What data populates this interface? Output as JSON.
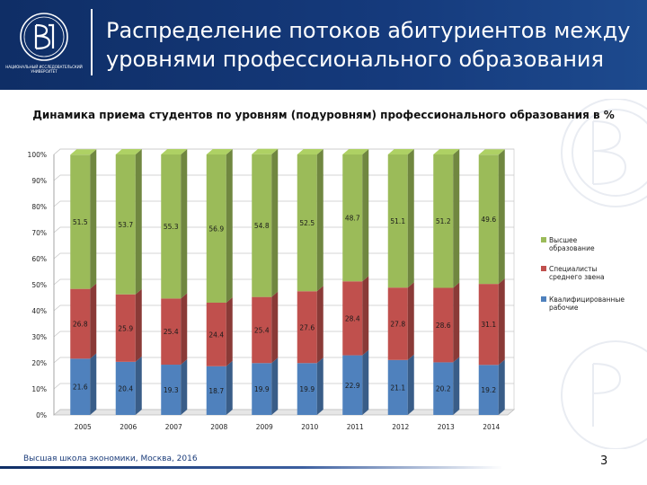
{
  "header": {
    "title": "Распределение потоков абитуриентов между уровнями профессионального образования",
    "logo_caption": "НАЦИОНАЛЬНЫЙ ИССЛЕДОВАТЕЛЬСКИЙ УНИВЕРСИТЕТ"
  },
  "footer": {
    "text": "Высшая школа экономики, Москва, 2016",
    "page_number": "3"
  },
  "colors": {
    "header": "#153a7c",
    "worker": "#4f81bd",
    "specialist": "#c0504d",
    "higher": "#9bbb59"
  },
  "chart_data": {
    "type": "bar",
    "stacked": "percent",
    "title": "Динамика приема студентов по уровням (подуровням) профессионального образования в %",
    "categories": [
      "2005",
      "2006",
      "2007",
      "2008",
      "2009",
      "2010",
      "2011",
      "2012",
      "2013",
      "2014"
    ],
    "y_ticks": [
      "0%",
      "10%",
      "20%",
      "30%",
      "40%",
      "50%",
      "60%",
      "70%",
      "80%",
      "90%",
      "100%"
    ],
    "ylim": [
      0,
      100
    ],
    "legend_position": "right",
    "series": [
      {
        "name": "Квалифицированные рабочие",
        "color": "#4f81bd",
        "values": [
          21.6,
          20.4,
          19.3,
          18.7,
          19.9,
          19.9,
          22.9,
          21.1,
          20.2,
          19.2
        ],
        "labels": [
          "21.6",
          "20.4",
          "19.3",
          "18.7",
          "19.9",
          "19.9",
          "22.9",
          "21.1",
          "20.2",
          "19.2"
        ]
      },
      {
        "name": "Специалисты среднего звена",
        "color": "#c0504d",
        "values": [
          26.8,
          25.9,
          25.4,
          24.4,
          25.4,
          27.6,
          28.4,
          27.8,
          28.6,
          31.1
        ],
        "labels": [
          "26.8",
          "25.9",
          "25.4",
          "24.4",
          "25.4",
          "27.6",
          "28.4",
          "27.8",
          "28.6",
          "31.1"
        ]
      },
      {
        "name": "Высшее образование",
        "color": "#9bbb59",
        "values": [
          51.5,
          53.7,
          55.3,
          56.9,
          54.8,
          52.5,
          48.7,
          51.1,
          51.2,
          49.6
        ],
        "labels": [
          "51.5",
          "53.7",
          "55.3",
          "56.9",
          "54.8",
          "52.5",
          "48.7",
          "51.1",
          "51.2",
          "49.6"
        ]
      }
    ],
    "legend": [
      {
        "line1": "Высшее",
        "line2": "образование",
        "color": "#9bbb59"
      },
      {
        "line1": "Специалисты",
        "line2": "среднего звена",
        "color": "#c0504d"
      },
      {
        "line1": "Квалифицированные",
        "line2": "рабочие",
        "color": "#4f81bd"
      }
    ]
  }
}
